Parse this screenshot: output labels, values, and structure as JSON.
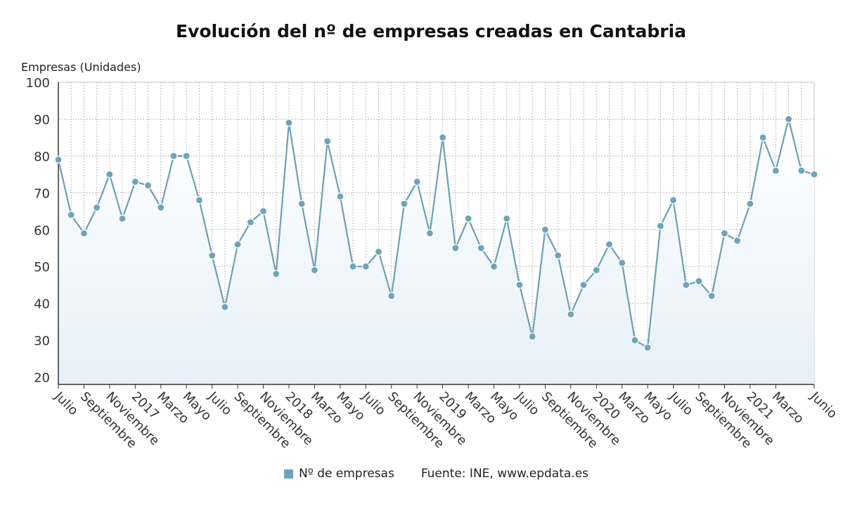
{
  "chart_data": {
    "type": "line",
    "title": "Evolución del nº de empresas creadas en Cantabria",
    "ylabel": "Empresas (Unidades)",
    "xlabel": "",
    "ylim": [
      18,
      100
    ],
    "yticks": [
      20,
      30,
      40,
      50,
      60,
      70,
      80,
      90,
      100
    ],
    "grid": true,
    "legend_position": "bottom",
    "colors": {
      "line": "#6e9fb3",
      "marker": "#6ea4ba",
      "fill": "#e6f0f8"
    },
    "x_tick_labels": [
      "Julio",
      "Septiembre",
      "Noviembre",
      "2017",
      "Marzo",
      "Mayo",
      "Julio",
      "Septiembre",
      "Noviembre",
      "2018",
      "Marzo",
      "Mayo",
      "Julio",
      "Septiembre",
      "Noviembre",
      "2019",
      "Marzo",
      "Mayo",
      "Julio",
      "Septiembre",
      "Noviembre",
      "2020",
      "Marzo",
      "Mayo",
      "Julio",
      "Septiembre",
      "Noviembre",
      "2021",
      "Marzo",
      "Junio"
    ],
    "x_tick_indices": [
      0,
      2,
      4,
      6,
      8,
      10,
      12,
      14,
      16,
      18,
      20,
      22,
      24,
      26,
      28,
      30,
      32,
      34,
      36,
      38,
      40,
      42,
      44,
      46,
      48,
      50,
      52,
      54,
      56,
      59
    ],
    "x": [
      "2016-07",
      "2016-08",
      "2016-09",
      "2016-10",
      "2016-11",
      "2016-12",
      "2017-01",
      "2017-02",
      "2017-03",
      "2017-04",
      "2017-05",
      "2017-06",
      "2017-07",
      "2017-08",
      "2017-09",
      "2017-10",
      "2017-11",
      "2017-12",
      "2018-01",
      "2018-02",
      "2018-03",
      "2018-04",
      "2018-05",
      "2018-06",
      "2018-07",
      "2018-08",
      "2018-09",
      "2018-10",
      "2018-11",
      "2018-12",
      "2019-01",
      "2019-02",
      "2019-03",
      "2019-04",
      "2019-05",
      "2019-06",
      "2019-07",
      "2019-08",
      "2019-09",
      "2019-10",
      "2019-11",
      "2019-12",
      "2020-01",
      "2020-02",
      "2020-03",
      "2020-04",
      "2020-05",
      "2020-06",
      "2020-07",
      "2020-08",
      "2020-09",
      "2020-10",
      "2020-11",
      "2020-12",
      "2021-01",
      "2021-02",
      "2021-03",
      "2021-04",
      "2021-05",
      "2021-06"
    ],
    "series": [
      {
        "name": "Nº de empresas",
        "values": [
          79,
          64,
          59,
          66,
          75,
          63,
          73,
          72,
          66,
          80,
          80,
          68,
          53,
          39,
          56,
          62,
          65,
          48,
          89,
          67,
          49,
          84,
          69,
          50,
          50,
          54,
          42,
          67,
          73,
          59,
          85,
          55,
          63,
          55,
          50,
          63,
          45,
          31,
          60,
          53,
          37,
          45,
          49,
          56,
          51,
          30,
          28,
          61,
          68,
          45,
          46,
          42,
          59,
          57,
          67,
          85,
          76,
          90,
          76,
          75
        ]
      }
    ],
    "source": "Fuente: INE, www.epdata.es"
  }
}
